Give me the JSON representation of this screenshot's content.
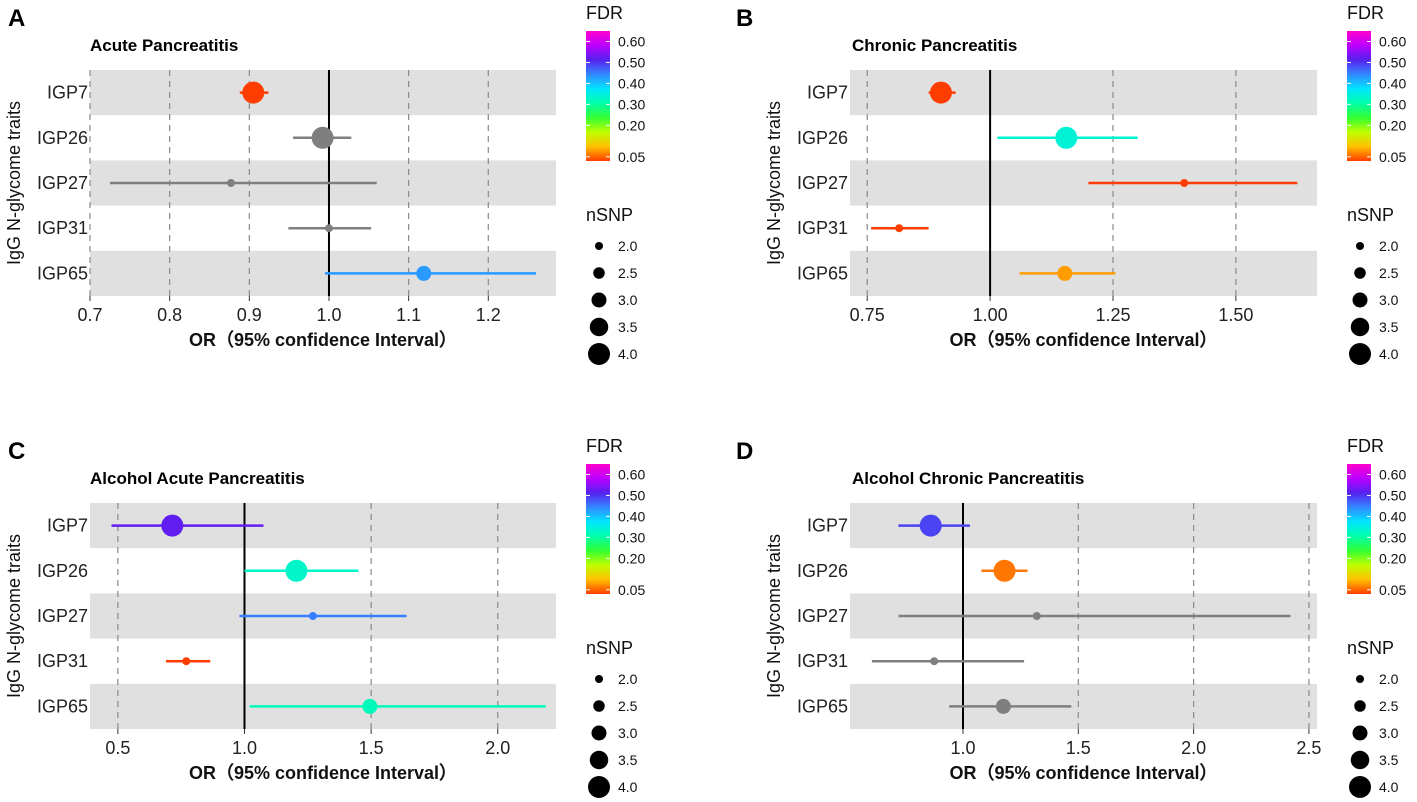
{
  "chart_data": [
    {
      "panel": "A",
      "type": "forest",
      "title": "Acute Pancreatitis",
      "xlabel": "OR（95% confidence Interval）",
      "ylabel": "IgG N-glycome traits",
      "xlim": [
        0.7,
        1.285
      ],
      "xticks": [
        0.7,
        0.8,
        0.9,
        1.0,
        1.1,
        1.2
      ],
      "xtick_labels": [
        "0.7",
        "0.8",
        "0.9",
        "1.0",
        "1.1",
        "1.2"
      ],
      "reference_line": 1.0,
      "rows": [
        {
          "trait": "IGP7",
          "or": 0.905,
          "lo": 0.888,
          "hi": 0.924,
          "nsnp": 4,
          "fdr": 0.03
        },
        {
          "trait": "IGP26",
          "or": 0.992,
          "lo": 0.955,
          "hi": 1.028,
          "nsnp": 4,
          "fdr": null
        },
        {
          "trait": "IGP27",
          "or": 0.877,
          "lo": 0.725,
          "hi": 1.06,
          "nsnp": 2,
          "fdr": null
        },
        {
          "trait": "IGP31",
          "or": 1.0,
          "lo": 0.949,
          "hi": 1.053,
          "nsnp": 2,
          "fdr": null
        },
        {
          "trait": "IGP65",
          "or": 1.119,
          "lo": 0.995,
          "hi": 1.26,
          "nsnp": 3,
          "fdr": 0.43
        }
      ]
    },
    {
      "panel": "B",
      "type": "forest",
      "title": "Chronic Pancreatitis",
      "xlabel": "OR（95% confidence Interval）",
      "ylabel": "IgG N-glycome traits",
      "xlim": [
        0.715,
        1.665
      ],
      "xticks": [
        0.75,
        1.0,
        1.25,
        1.5
      ],
      "xtick_labels": [
        "0.75",
        "1.00",
        "1.25",
        "1.50"
      ],
      "reference_line": 1.0,
      "rows": [
        {
          "trait": "IGP7",
          "or": 0.9,
          "lo": 0.875,
          "hi": 0.93,
          "nsnp": 4,
          "fdr": 0.03
        },
        {
          "trait": "IGP26",
          "or": 1.155,
          "lo": 1.015,
          "hi": 1.3,
          "nsnp": 4,
          "fdr": 0.34
        },
        {
          "trait": "IGP27",
          "or": 1.395,
          "lo": 1.2,
          "hi": 1.625,
          "nsnp": 2,
          "fdr": 0.03
        },
        {
          "trait": "IGP31",
          "or": 0.815,
          "lo": 0.758,
          "hi": 0.875,
          "nsnp": 2,
          "fdr": 0.03
        },
        {
          "trait": "IGP65",
          "or": 1.152,
          "lo": 1.06,
          "hi": 1.255,
          "nsnp": 3,
          "fdr": 0.08
        }
      ]
    },
    {
      "panel": "C",
      "type": "forest",
      "title": "Alcohol Acute Pancreatitis",
      "xlabel": "OR（95% confidence Interval）",
      "ylabel": "IgG N-glycome traits",
      "xlim": [
        0.39,
        2.23
      ],
      "xticks": [
        0.5,
        1.0,
        1.5,
        2.0
      ],
      "xtick_labels": [
        "0.5",
        "1.0",
        "1.5",
        "2.0"
      ],
      "reference_line": 1.0,
      "rows": [
        {
          "trait": "IGP7",
          "or": 0.715,
          "lo": 0.475,
          "hi": 1.075,
          "nsnp": 4,
          "fdr": 0.52
        },
        {
          "trait": "IGP26",
          "or": 1.205,
          "lo": 1.0,
          "hi": 1.45,
          "nsnp": 4,
          "fdr": 0.33
        },
        {
          "trait": "IGP27",
          "or": 1.27,
          "lo": 0.98,
          "hi": 1.64,
          "nsnp": 2,
          "fdr": 0.45
        },
        {
          "trait": "IGP31",
          "or": 0.77,
          "lo": 0.69,
          "hi": 0.865,
          "nsnp": 2,
          "fdr": 0.03
        },
        {
          "trait": "IGP65",
          "or": 1.495,
          "lo": 1.02,
          "hi": 2.19,
          "nsnp": 3,
          "fdr": 0.32
        }
      ]
    },
    {
      "panel": "D",
      "type": "forest",
      "title": "Alcohol Chronic Pancreatitis",
      "xlabel": "OR（95% confidence Interval）",
      "ylabel": "IgG N-glycome traits",
      "xlim": [
        0.51,
        2.535
      ],
      "xticks": [
        1.0,
        1.5,
        2.0,
        2.5
      ],
      "xtick_labels": [
        "1.0",
        "1.5",
        "2.0",
        "2.5"
      ],
      "reference_line": 1.0,
      "rows": [
        {
          "trait": "IGP7",
          "or": 0.86,
          "lo": 0.72,
          "hi": 1.03,
          "nsnp": 4,
          "fdr": 0.49
        },
        {
          "trait": "IGP26",
          "or": 1.18,
          "lo": 1.08,
          "hi": 1.28,
          "nsnp": 4,
          "fdr": 0.06
        },
        {
          "trait": "IGP27",
          "or": 1.32,
          "lo": 0.72,
          "hi": 2.42,
          "nsnp": 2,
          "fdr": null
        },
        {
          "trait": "IGP31",
          "or": 0.875,
          "lo": 0.605,
          "hi": 1.265,
          "nsnp": 2,
          "fdr": null
        },
        {
          "trait": "IGP65",
          "or": 1.175,
          "lo": 0.94,
          "hi": 1.47,
          "nsnp": 3,
          "fdr": null
        }
      ]
    }
  ],
  "legend": {
    "color_title": "FDR",
    "color_ticks": [
      "0.60",
      "0.50",
      "0.40",
      "0.30",
      "0.20",
      "0.05"
    ],
    "color_tick_values": [
      0.6,
      0.5,
      0.4,
      0.3,
      0.2,
      0.05
    ],
    "color_range": [
      0.03,
      0.65
    ],
    "color_stops": [
      "#ff3d00",
      "#ffc000",
      "#bfff00",
      "#33ff33",
      "#00ffaa",
      "#00e5ff",
      "#3388ff",
      "#5522ee",
      "#bb00ff",
      "#ff00cc"
    ],
    "size_title": "nSNP",
    "size_ticks": [
      "2.0",
      "2.5",
      "3.0",
      "3.5",
      "4.0"
    ],
    "size_values": [
      2.0,
      2.5,
      3.0,
      3.5,
      4.0
    ]
  },
  "colors": {
    "stripe": "#e0e0e0",
    "grid": "#8a8a8a",
    "na_point": "#7f7f7f",
    "reference": "#000000"
  }
}
